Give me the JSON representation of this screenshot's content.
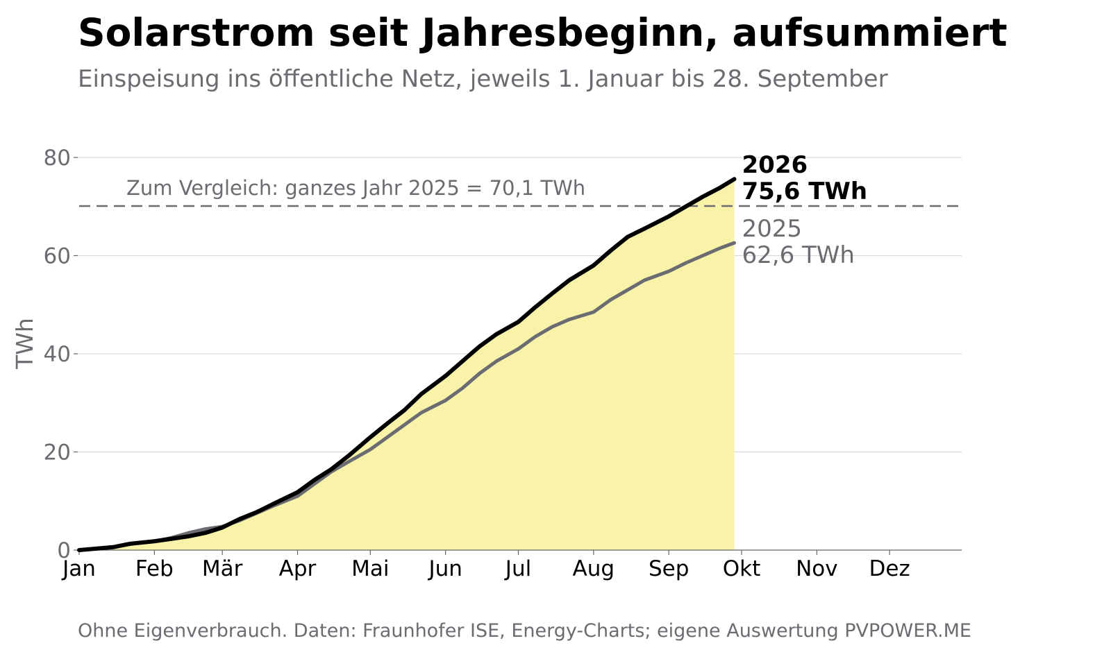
{
  "chart_data": {
    "type": "line",
    "title": "Solarstrom seit Jahresbeginn, aufsummiert",
    "subtitle": "Einspeisung ins öffentliche Netz, jeweils 1. Januar bis 28. September",
    "ylabel": "TWh",
    "xlabel": "",
    "ylim": [
      0,
      80
    ],
    "yticks": [
      0,
      20,
      40,
      60,
      80
    ],
    "ytick_labels": [
      "0",
      "20",
      "40",
      "60",
      "80"
    ],
    "xlim": [
      "01.01.",
      "31.12."
    ],
    "x_unit": "Tag des Jahres (1. Januar bis 28. September)",
    "x_ticks": [
      {
        "label": "Jan",
        "date": "01.01."
      },
      {
        "label": "Feb",
        "date": "01.02."
      },
      {
        "label": "Mär",
        "date": "01.03."
      },
      {
        "label": "Apr",
        "date": "01.04."
      },
      {
        "label": "Mai",
        "date": "01.05."
      },
      {
        "label": "Jun",
        "date": "01.06."
      },
      {
        "label": "Jul",
        "date": "01.07."
      },
      {
        "label": "Aug",
        "date": "01.08."
      },
      {
        "label": "Sep",
        "date": "01.09."
      },
      {
        "label": "Okt",
        "date": "01.10."
      },
      {
        "label": "Nov",
        "date": "01.11."
      },
      {
        "label": "Dez",
        "date": "01.12."
      }
    ],
    "grid": true,
    "reference_line": {
      "value": 70.1,
      "label": "Zum Vergleich: ganzes Jahr 2025 = 70,1 TWh",
      "style": "dashed",
      "color": "#6b6b72"
    },
    "series": [
      {
        "name": "2026",
        "end_label_line1": "2026",
        "end_label_line2": "75,6 TWh",
        "color": "#000000",
        "fill": "#f9f2a9",
        "x": [
          "01.01.",
          "08.01.",
          "15.01.",
          "22.01.",
          "01.02.",
          "08.02.",
          "15.02.",
          "22.02.",
          "01.03.",
          "08.03.",
          "15.03.",
          "22.03.",
          "01.04.",
          "08.04.",
          "15.04.",
          "22.04.",
          "01.05.",
          "08.05.",
          "15.05.",
          "22.05.",
          "01.06.",
          "08.06.",
          "15.06.",
          "22.06.",
          "01.07.",
          "08.07.",
          "15.07.",
          "22.07.",
          "01.08.",
          "08.08.",
          "15.08.",
          "22.08.",
          "01.09.",
          "08.09.",
          "15.09.",
          "22.09.",
          "28.09."
        ],
        "y": [
          0,
          0.3,
          0.6,
          1.3,
          1.8,
          2.3,
          2.8,
          3.5,
          4.6,
          6.3,
          7.7,
          9.4,
          11.8,
          14.3,
          16.5,
          19.2,
          23.0,
          25.8,
          28.5,
          31.8,
          35.5,
          38.5,
          41.5,
          44.0,
          46.5,
          49.5,
          52.3,
          55.0,
          58.0,
          61.0,
          63.8,
          65.5,
          68.0,
          70.0,
          72.0,
          73.8,
          75.6
        ]
      },
      {
        "name": "2025",
        "end_label_line1": "2025",
        "end_label_line2": "62,6 TWh",
        "color": "#6b6b72",
        "x": [
          "01.01.",
          "08.01.",
          "15.01.",
          "22.01.",
          "01.02.",
          "08.02.",
          "15.02.",
          "22.02.",
          "01.03.",
          "08.03.",
          "15.03.",
          "22.03.",
          "01.04.",
          "08.04.",
          "15.04.",
          "22.04.",
          "01.05.",
          "08.05.",
          "15.05.",
          "22.05.",
          "01.06.",
          "08.06.",
          "15.06.",
          "22.06.",
          "01.07.",
          "08.07.",
          "15.07.",
          "22.07.",
          "01.08.",
          "08.08.",
          "15.08.",
          "22.08.",
          "01.09.",
          "08.09.",
          "15.09.",
          "22.09.",
          "28.09."
        ],
        "y": [
          0,
          0.3,
          0.6,
          1.2,
          1.8,
          2.5,
          3.5,
          4.3,
          4.8,
          6.0,
          7.5,
          9.0,
          11.0,
          13.5,
          16.0,
          18.0,
          20.5,
          23.0,
          25.5,
          28.0,
          30.5,
          33.0,
          36.0,
          38.5,
          41.0,
          43.5,
          45.5,
          47.0,
          48.5,
          51.0,
          53.0,
          55.0,
          56.8,
          58.5,
          60.0,
          61.5,
          62.6
        ]
      }
    ]
  },
  "footer": {
    "text": "Ohne Eigenverbrauch. Daten: Fraunhofer ISE, Energy-Charts; eigene Auswertung PVPOWER.ME"
  }
}
